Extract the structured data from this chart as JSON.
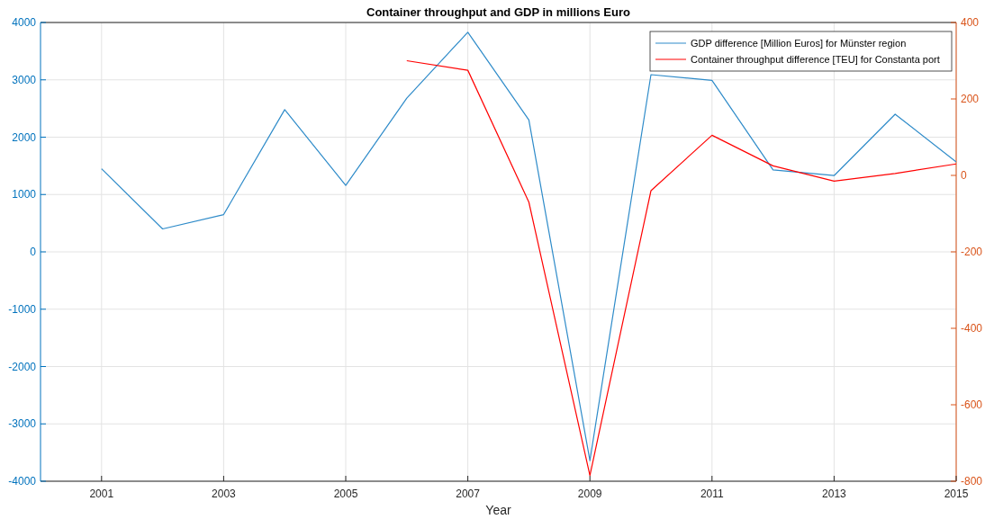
{
  "chart_data": {
    "type": "line",
    "title": "Container throughput and GDP in millions Euro",
    "xlabel": "Year",
    "x": [
      2001,
      2002,
      2003,
      2004,
      2005,
      2006,
      2007,
      2008,
      2009,
      2010,
      2011,
      2012,
      2013,
      2014,
      2015
    ],
    "series": [
      {
        "name": "GDP difference [Million Euros] for Münster region",
        "color": "#2e8bc9",
        "values": [
          1450,
          400,
          650,
          2480,
          1160,
          2680,
          3830,
          2300,
          -3640,
          3090,
          2990,
          1430,
          1330,
          2400,
          1570
        ]
      },
      {
        "name": "Container throughput difference [TEU] for Constanta port",
        "color": "#ff0000",
        "axis": "y2",
        "values": [
          null,
          null,
          null,
          null,
          null,
          300,
          275,
          -70,
          -785,
          -40,
          105,
          25,
          -15,
          5,
          30
        ]
      }
    ],
    "xlim": [
      2000,
      2015
    ],
    "xticks": [
      2001,
      2003,
      2005,
      2007,
      2009,
      2011,
      2013,
      2015
    ],
    "ylim": [
      -4000,
      4000
    ],
    "yticks": [
      -4000,
      -3000,
      -2000,
      -1000,
      0,
      1000,
      2000,
      3000,
      4000
    ],
    "y2lim": [
      -800,
      400
    ],
    "y2ticks": [
      -800,
      -600,
      -400,
      -200,
      0,
      200,
      400
    ],
    "grid": true,
    "legend": "top right",
    "marker": "none",
    "line_style": "solid"
  }
}
